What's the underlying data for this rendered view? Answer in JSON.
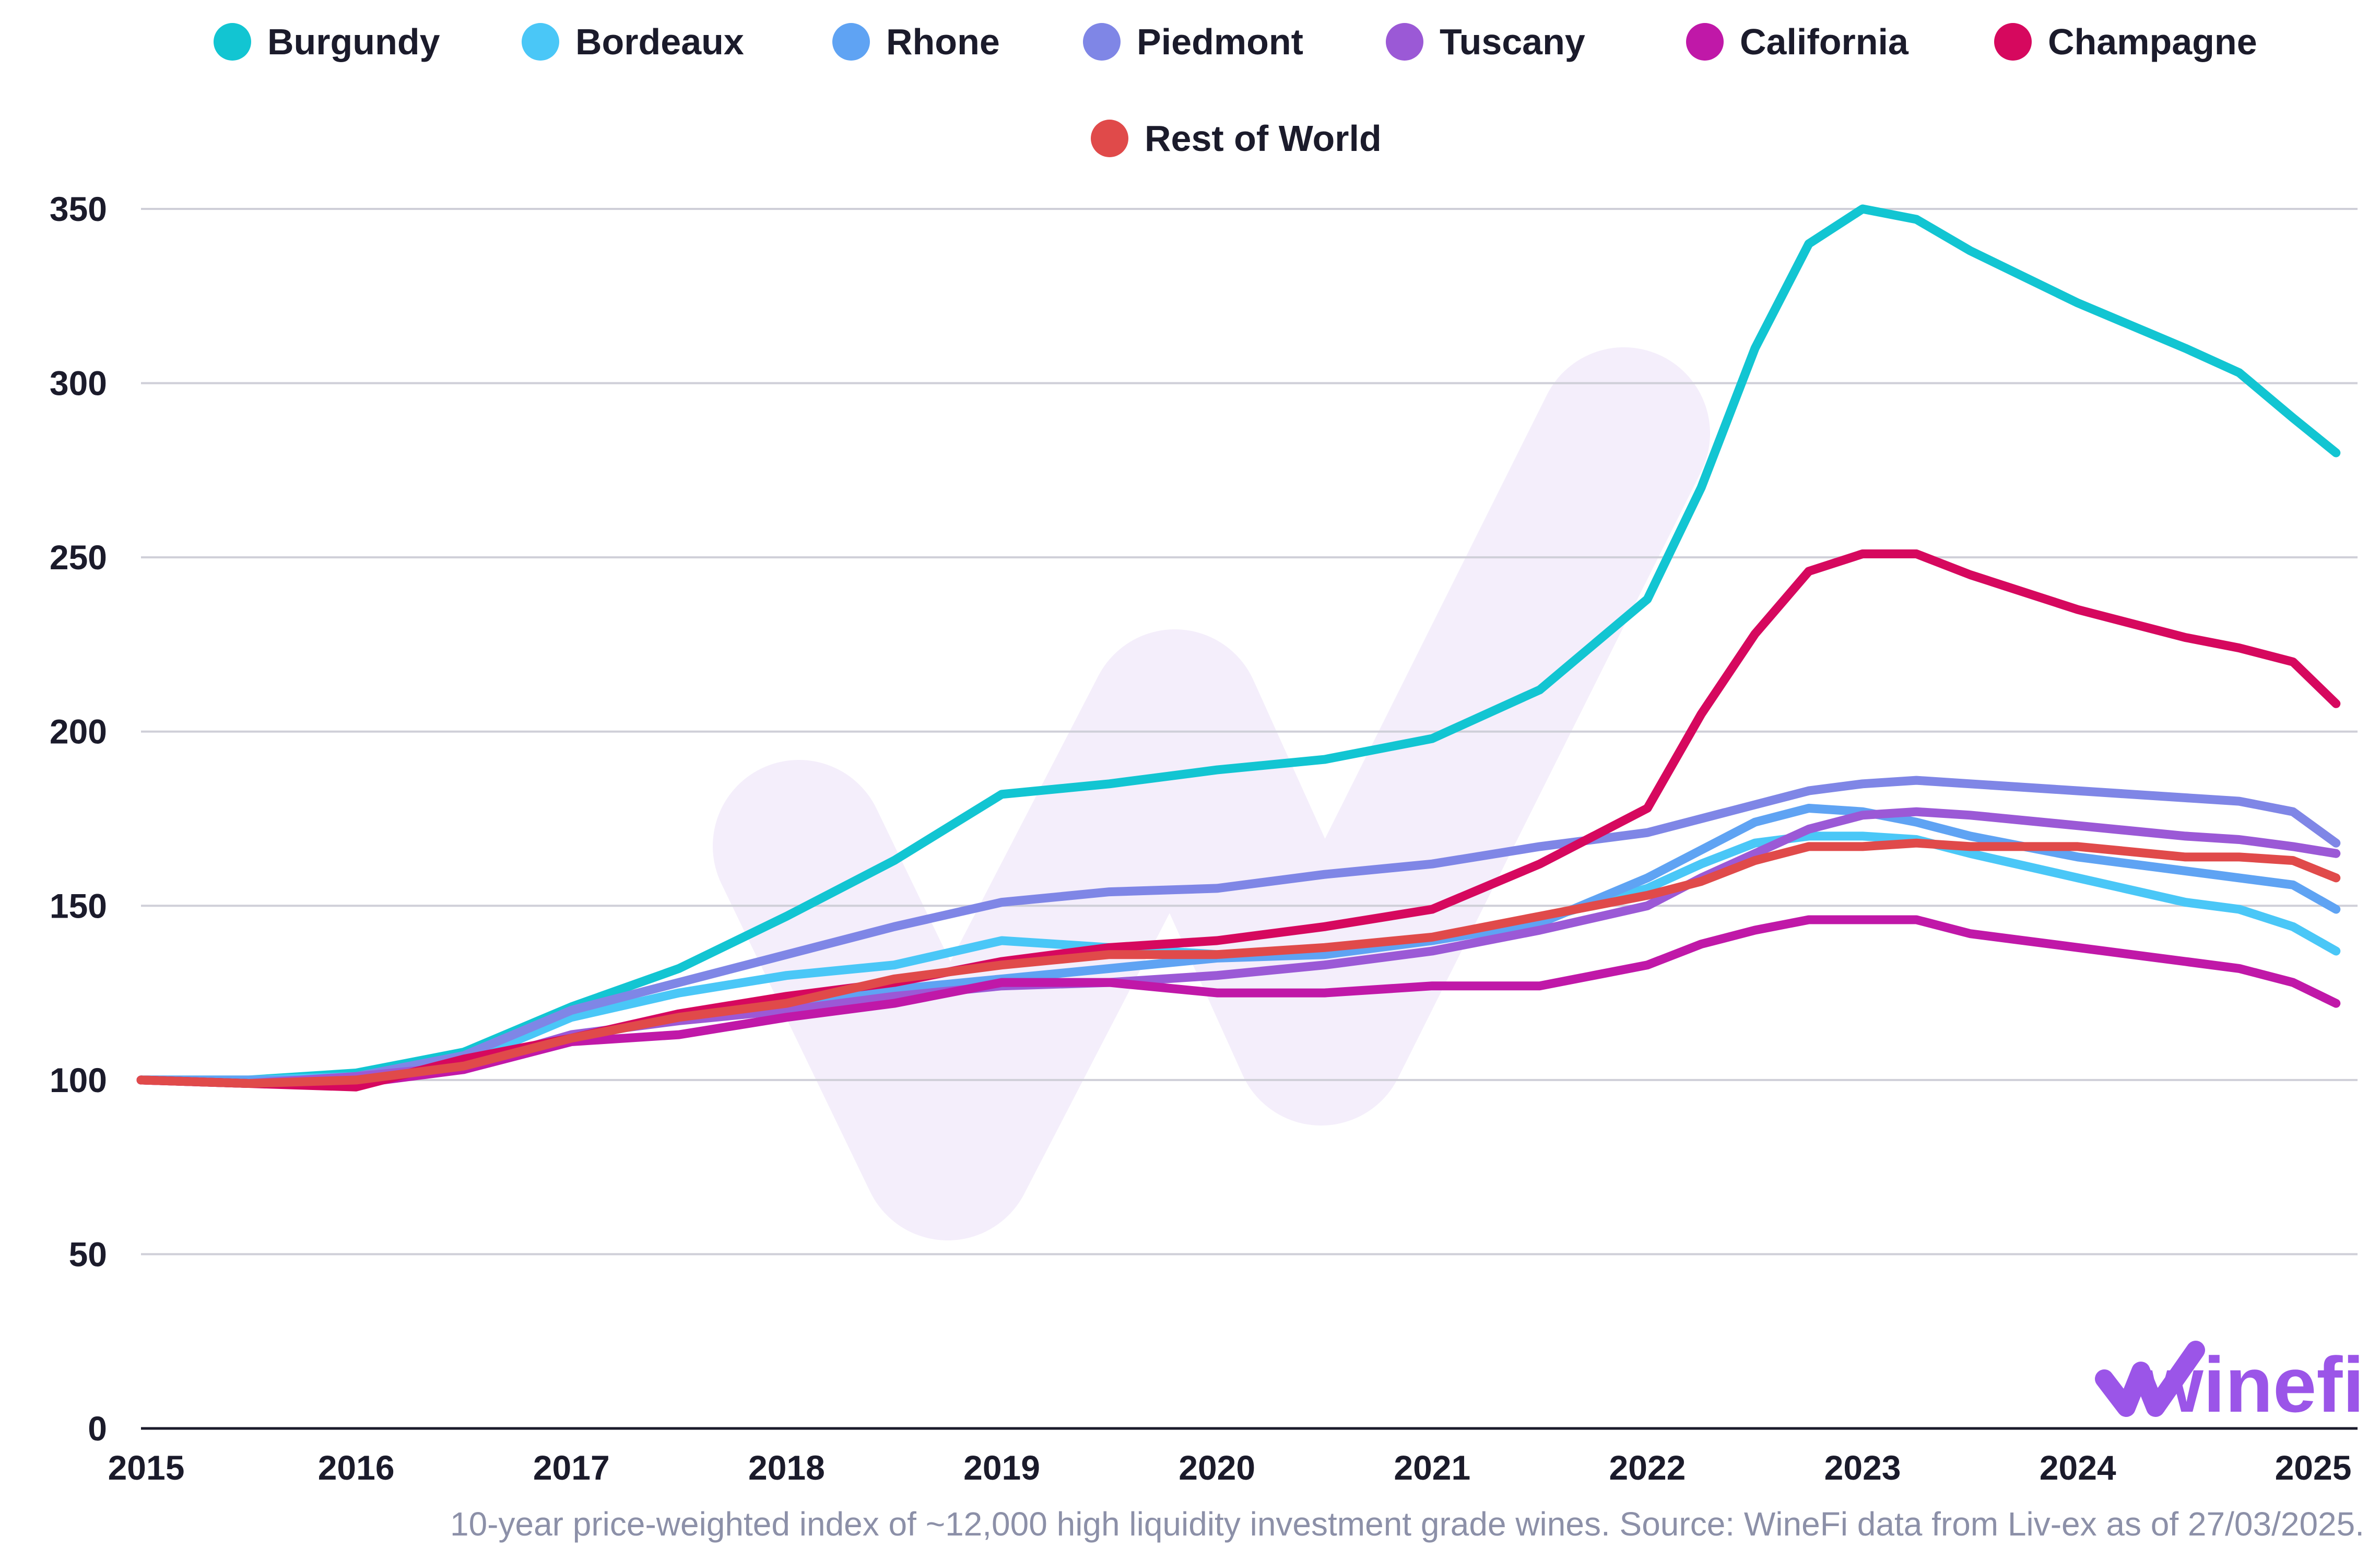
{
  "caption": "10-year price-weighted index of ~12,000 high liquidity investment grade wines. Source: WineFi data from Liv-ex as of 27/03/2025.",
  "logo": {
    "text": "winefi",
    "color": "#9b55e8"
  },
  "chart_data": {
    "type": "line",
    "title": "",
    "xlabel": "",
    "ylabel": "",
    "xlim": [
      2015,
      2025.3
    ],
    "ylim": [
      0,
      350
    ],
    "yticks": [
      0,
      50,
      100,
      150,
      200,
      250,
      300,
      350
    ],
    "xticks": [
      "2015",
      "2016",
      "2017",
      "2018",
      "2019",
      "2020",
      "2021",
      "2022",
      "2023",
      "2024",
      "2025"
    ],
    "grid": true,
    "legend_position": "top",
    "x": [
      2015.0,
      2015.5,
      2016.0,
      2016.5,
      2017.0,
      2017.5,
      2018.0,
      2018.5,
      2019.0,
      2019.5,
      2020.0,
      2020.5,
      2021.0,
      2021.5,
      2022.0,
      2022.25,
      2022.5,
      2022.75,
      2023.0,
      2023.25,
      2023.5,
      2024.0,
      2024.5,
      2024.75,
      2025.0,
      2025.2
    ],
    "series": [
      {
        "name": "Burgundy",
        "color": "#12c5d2",
        "values": [
          100,
          100,
          102,
          108,
          121,
          132,
          147,
          163,
          182,
          185,
          189,
          192,
          198,
          212,
          238,
          270,
          310,
          340,
          350,
          347,
          338,
          323,
          310,
          303,
          290,
          280
        ]
      },
      {
        "name": "Bordeaux",
        "color": "#4ac7f7",
        "values": [
          100,
          100,
          101,
          105,
          118,
          125,
          130,
          133,
          140,
          138,
          136,
          137,
          140,
          146,
          155,
          162,
          168,
          170,
          170,
          169,
          165,
          158,
          151,
          149,
          144,
          137
        ]
      },
      {
        "name": "Rhone",
        "color": "#5fa3f3",
        "values": [
          100,
          100,
          100,
          103,
          112,
          118,
          122,
          126,
          129,
          132,
          135,
          136,
          140,
          145,
          158,
          166,
          174,
          178,
          177,
          174,
          170,
          164,
          160,
          158,
          156,
          149
        ]
      },
      {
        "name": "Piedmont",
        "color": "#7f86e6",
        "values": [
          100,
          99,
          101,
          107,
          120,
          128,
          136,
          144,
          151,
          154,
          155,
          159,
          162,
          167,
          171,
          175,
          179,
          183,
          185,
          186,
          185,
          183,
          181,
          180,
          177,
          168
        ]
      },
      {
        "name": "Tuscany",
        "color": "#9b59d6",
        "values": [
          100,
          99,
          101,
          104,
          113,
          117,
          120,
          124,
          127,
          128,
          130,
          133,
          137,
          143,
          150,
          158,
          165,
          172,
          176,
          177,
          176,
          173,
          170,
          169,
          167,
          165
        ]
      },
      {
        "name": "California",
        "color": "#c018a8",
        "values": [
          100,
          99,
          99,
          103,
          111,
          113,
          118,
          122,
          128,
          128,
          125,
          125,
          127,
          127,
          133,
          139,
          143,
          146,
          146,
          146,
          142,
          138,
          134,
          132,
          128,
          122
        ]
      },
      {
        "name": "Champagne",
        "color": "#d6085e",
        "values": [
          100,
          99,
          98,
          106,
          112,
          119,
          124,
          128,
          134,
          138,
          140,
          144,
          149,
          162,
          178,
          205,
          228,
          246,
          251,
          251,
          245,
          235,
          227,
          224,
          220,
          208
        ]
      },
      {
        "name": "Rest of World",
        "color": "#e04a4a",
        "values": [
          100,
          99,
          100,
          104,
          112,
          118,
          122,
          129,
          133,
          136,
          136,
          138,
          141,
          147,
          153,
          157,
          163,
          167,
          167,
          168,
          167,
          167,
          164,
          164,
          163,
          158
        ]
      }
    ]
  }
}
